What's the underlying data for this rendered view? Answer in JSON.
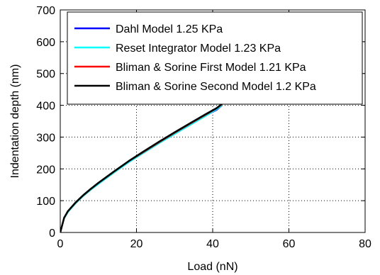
{
  "chart_data": {
    "type": "line",
    "title": "",
    "xlabel": "Load (nN)",
    "ylabel": "Indentation depth (nm)",
    "xlim": [
      0,
      80
    ],
    "ylim": [
      0,
      700
    ],
    "xticks": [
      0,
      20,
      40,
      60,
      80
    ],
    "yticks": [
      0,
      100,
      200,
      300,
      400,
      500,
      600,
      700
    ],
    "grid": true,
    "legend_position": "top",
    "series": [
      {
        "name": "Dahl Model 1.25 KPa",
        "color": "#0000ff",
        "x": [
          0,
          1,
          2,
          4,
          6,
          8,
          10,
          14,
          18,
          22,
          26,
          30,
          34,
          38,
          41,
          42.5
        ],
        "y": [
          0,
          45,
          65,
          92,
          115,
          135,
          153,
          188,
          222,
          252,
          282,
          310,
          338,
          366,
          385,
          400
        ]
      },
      {
        "name": "Reset Integrator Model 1.23 KPa",
        "color": "#00ffff",
        "x": [
          0,
          1,
          2,
          4,
          6,
          8,
          10,
          14,
          18,
          22,
          26,
          30,
          34,
          38,
          41,
          42.5
        ],
        "y": [
          0,
          44,
          64,
          91,
          114,
          134,
          152,
          187,
          221,
          251,
          281,
          309,
          337,
          365,
          387,
          400
        ]
      },
      {
        "name": "Bliman & Sorine First Model 1.21 KPa",
        "color": "#ff0000",
        "x": [
          0,
          1,
          2,
          4,
          6,
          8,
          10,
          14,
          18,
          22,
          26,
          30,
          34,
          38,
          41,
          42.5
        ],
        "y": [
          0,
          46,
          66,
          93,
          116,
          136,
          155,
          190,
          224,
          254,
          284,
          313,
          341,
          369,
          390,
          403
        ]
      },
      {
        "name": "Bliman & Sorine Second Model 1.2 KPa",
        "color": "#000000",
        "x": [
          0,
          1,
          2,
          4,
          6,
          8,
          10,
          14,
          18,
          22,
          26,
          30,
          34,
          38,
          41,
          42.5
        ],
        "y": [
          0,
          46,
          67,
          94,
          117,
          137,
          156,
          191,
          225,
          256,
          286,
          315,
          343,
          371,
          391,
          405
        ]
      }
    ]
  }
}
